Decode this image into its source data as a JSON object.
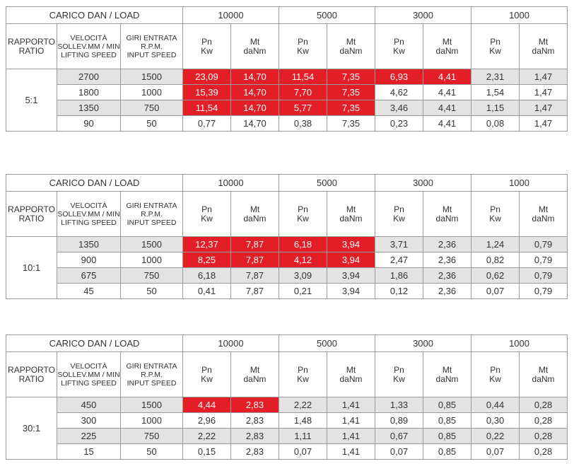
{
  "header": {
    "load_label": "CARICO DAN / LOAD",
    "loads": [
      "10000",
      "5000",
      "3000",
      "1000"
    ],
    "ratio_label": [
      "RAPPORTO",
      "RATIO"
    ],
    "speed_label": [
      "VELOCITÀ",
      "SOLLEV.MM / MIN",
      "LIFTING SPEED"
    ],
    "rpm_label": [
      "GIRI ENTRATA",
      "R.P.M.",
      "INPUT SPEED"
    ],
    "pn_label": [
      "Pn",
      "Kw"
    ],
    "mt_label": [
      "Mt",
      "daNm"
    ]
  },
  "highlight_color": "#e31e26",
  "shade_color": "#e3e3e3",
  "tables": [
    {
      "ratio": "5:1",
      "rows": [
        {
          "speed": "2700",
          "rpm": "1500",
          "values": [
            "23,09",
            "14,70",
            "11,54",
            "7,35",
            "6,93",
            "4,41",
            "2,31",
            "1,47"
          ],
          "red": [
            0,
            1,
            2,
            3,
            4,
            5
          ]
        },
        {
          "speed": "1800",
          "rpm": "1000",
          "values": [
            "15,39",
            "14,70",
            "7,70",
            "7,35",
            "4,62",
            "4,41",
            "1,54",
            "1,47"
          ],
          "red": [
            0,
            1,
            2,
            3
          ]
        },
        {
          "speed": "1350",
          "rpm": "750",
          "values": [
            "11,54",
            "14,70",
            "5,77",
            "7,35",
            "3,46",
            "4,41",
            "1,15",
            "1,47"
          ],
          "red": [
            0,
            1,
            2,
            3
          ]
        },
        {
          "speed": "90",
          "rpm": "50",
          "values": [
            "0,77",
            "14,70",
            "0,38",
            "7,35",
            "0,23",
            "4,41",
            "0,08",
            "1,47"
          ],
          "red": []
        }
      ]
    },
    {
      "ratio": "10:1",
      "rows": [
        {
          "speed": "1350",
          "rpm": "1500",
          "values": [
            "12,37",
            "7,87",
            "6,18",
            "3,94",
            "3,71",
            "2,36",
            "1,24",
            "0,79"
          ],
          "red": [
            0,
            1,
            2,
            3
          ]
        },
        {
          "speed": "900",
          "rpm": "1000",
          "values": [
            "8,25",
            "7,87",
            "4,12",
            "3,94",
            "2,47",
            "2,36",
            "0,82",
            "0,79"
          ],
          "red": [
            0,
            1,
            2,
            3
          ]
        },
        {
          "speed": "675",
          "rpm": "750",
          "values": [
            "6,18",
            "7,87",
            "3,09",
            "3,94",
            "1,86",
            "2,36",
            "0,62",
            "0,79"
          ],
          "red": []
        },
        {
          "speed": "45",
          "rpm": "50",
          "values": [
            "0,41",
            "7,87",
            "0,21",
            "3,94",
            "0,12",
            "2,36",
            "0,07",
            "0,79"
          ],
          "red": []
        }
      ]
    },
    {
      "ratio": "30:1",
      "rows": [
        {
          "speed": "450",
          "rpm": "1500",
          "values": [
            "4,44",
            "2,83",
            "2,22",
            "1,41",
            "1,33",
            "0,85",
            "0,44",
            "0,28"
          ],
          "red": [
            0,
            1
          ]
        },
        {
          "speed": "300",
          "rpm": "1000",
          "values": [
            "2,96",
            "2,83",
            "1,48",
            "1,41",
            "0,89",
            "0,85",
            "0,30",
            "0,28"
          ],
          "red": []
        },
        {
          "speed": "225",
          "rpm": "750",
          "values": [
            "2,22",
            "2,83",
            "1,11",
            "1,41",
            "0,67",
            "0,85",
            "0,22",
            "0,28"
          ],
          "red": []
        },
        {
          "speed": "15",
          "rpm": "50",
          "values": [
            "0,15",
            "2,83",
            "0,07",
            "1,41",
            "0,07",
            "0,85",
            "0,07",
            "0,28"
          ],
          "red": []
        }
      ]
    }
  ]
}
